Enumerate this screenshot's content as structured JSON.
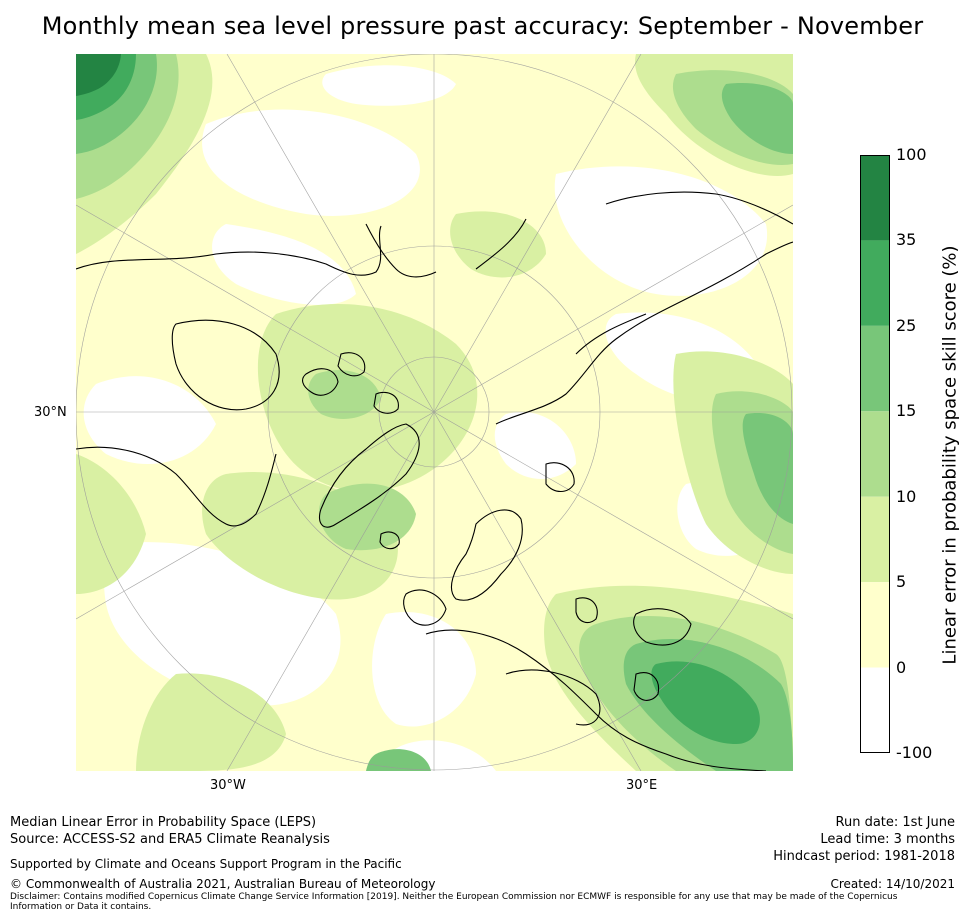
{
  "title": "Monthly mean sea level pressure past accuracy: September - November",
  "map": {
    "projection": "north-polar-stereographic",
    "lat_label": "30°N",
    "lon_labels": [
      "30°W",
      "30°E"
    ],
    "colors": {
      "no_skill": "#ffffff",
      "band_0_5": "#ffffcc",
      "band_5_10": "#d9f0a3",
      "band_10_15": "#addd8e",
      "band_15_25": "#78c679",
      "band_25_35": "#41ab5d",
      "band_35_100": "#238443",
      "coastline": "#000000",
      "graticule": "#9a9a9a"
    }
  },
  "colorbar": {
    "label": "Linear error in probability space skill score (%)",
    "ticks": [
      "100",
      "35",
      "25",
      "15",
      "10",
      "5",
      "0",
      "-100"
    ],
    "bands": [
      {
        "from": "35",
        "to": "100",
        "color": "#238443"
      },
      {
        "from": "25",
        "to": "35",
        "color": "#41ab5d"
      },
      {
        "from": "15",
        "to": "25",
        "color": "#78c679"
      },
      {
        "from": "10",
        "to": "15",
        "color": "#addd8e"
      },
      {
        "from": "5",
        "to": "10",
        "color": "#d9f0a3"
      },
      {
        "from": "0",
        "to": "5",
        "color": "#ffffcc"
      },
      {
        "from": "-100",
        "to": "0",
        "color": "#ffffff"
      }
    ]
  },
  "footer": {
    "line1": "Median Linear Error in Probability Space (LEPS)",
    "line2": "Source: ACCESS-S2 and ERA5 Climate Reanalysis",
    "supported": "Supported by Climate and Oceans Support Program in the Pacific",
    "copyright": "© Commonwealth of Australia 2021, Australian Bureau of Meteorology",
    "disclaimer": "Disclaimer: Contains modified Copernicus Climate Change Service Information [2019]. Neither the European Commission nor ECMWF is responsible for any use that may be made of the Copernicus Information or Data it contains.",
    "run_date": "Run date: 1st June",
    "lead_time": "Lead time: 3 months",
    "hindcast": "Hindcast period: 1981-2018",
    "created": "Created: 14/10/2021"
  }
}
